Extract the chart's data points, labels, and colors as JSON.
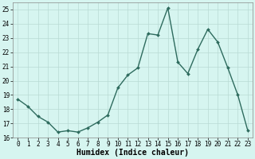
{
  "x": [
    0,
    1,
    2,
    3,
    4,
    5,
    6,
    7,
    8,
    9,
    10,
    11,
    12,
    13,
    14,
    15,
    16,
    17,
    18,
    19,
    20,
    21,
    22,
    23
  ],
  "y": [
    18.7,
    18.2,
    17.5,
    17.1,
    16.4,
    16.5,
    16.4,
    16.7,
    17.1,
    17.6,
    19.5,
    20.4,
    20.9,
    23.3,
    23.2,
    25.1,
    21.3,
    20.5,
    22.2,
    23.6,
    22.7,
    20.9,
    19.0,
    16.5
  ],
  "line_color": "#2e6b5e",
  "marker": "D",
  "marker_size": 2.0,
  "bg_color": "#d6f5f0",
  "grid_color": "#b8dad4",
  "xlabel": "Humidex (Indice chaleur)",
  "xlim": [
    -0.5,
    23.5
  ],
  "ylim": [
    16,
    25.5
  ],
  "yticks": [
    16,
    17,
    18,
    19,
    20,
    21,
    22,
    23,
    24,
    25
  ],
  "xticks": [
    0,
    1,
    2,
    3,
    4,
    5,
    6,
    7,
    8,
    9,
    10,
    11,
    12,
    13,
    14,
    15,
    16,
    17,
    18,
    19,
    20,
    21,
    22,
    23
  ],
  "tick_label_fontsize": 5.5,
  "xlabel_fontsize": 7.0,
  "line_width": 1.0
}
